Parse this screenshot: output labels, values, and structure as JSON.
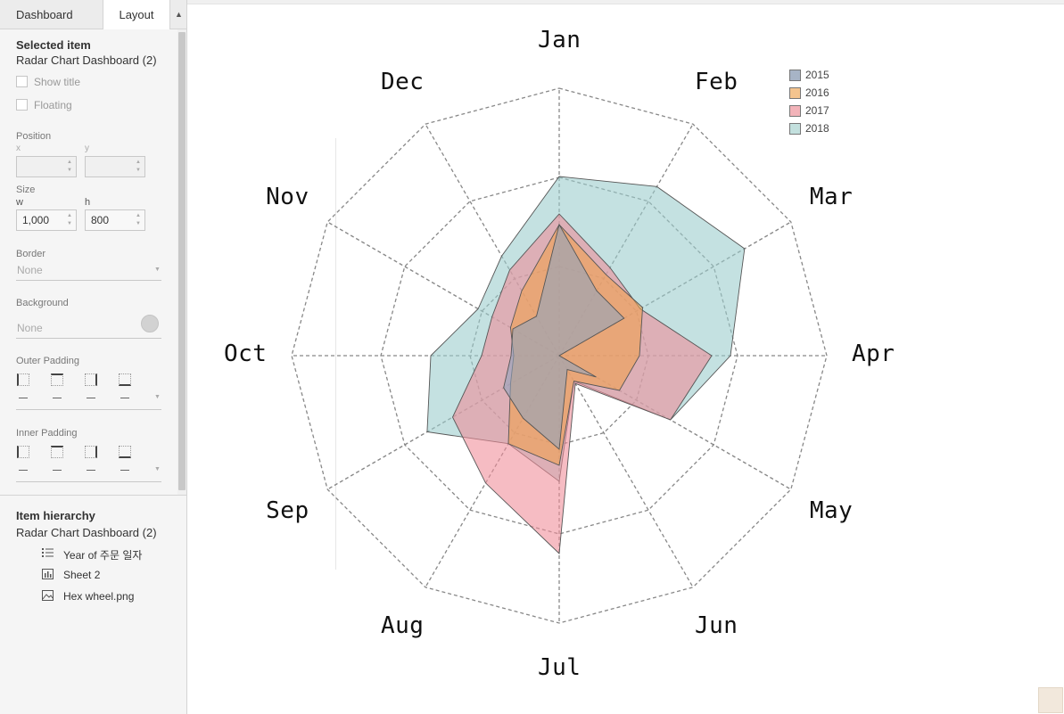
{
  "panel": {
    "tabs": [
      "Dashboard",
      "Layout"
    ],
    "selected_item_header": "Selected item",
    "selected_item_name": "Radar Chart Dashboard (2)",
    "show_title_label": "Show title",
    "floating_label": "Floating",
    "position_label": "Position",
    "x_label": "x",
    "y_label": "y",
    "x_value": "",
    "y_value": "",
    "size_label": "Size",
    "w_label": "w",
    "h_label": "h",
    "w_value": "1,000",
    "h_value": "800",
    "border_label": "Border",
    "border_value": "None",
    "background_label": "Background",
    "background_value": "None",
    "outer_padding_label": "Outer Padding",
    "inner_padding_label": "Inner Padding",
    "padding_value": "–",
    "item_hierarchy_header": "Item hierarchy",
    "hierarchy_root": "Radar Chart Dashboard (2)",
    "hierarchy_items": [
      {
        "label": "Year of 주문 일자",
        "icon": "legend-icon"
      },
      {
        "label": "Sheet 2",
        "icon": "worksheet-icon"
      },
      {
        "label": "Hex wheel.png",
        "icon": "image-icon"
      }
    ]
  },
  "chart_data": {
    "type": "radar",
    "categories": [
      "Jan",
      "Feb",
      "Mar",
      "Apr",
      "May",
      "Jun",
      "Jul",
      "Aug",
      "Sep",
      "Oct",
      "Nov",
      "Dec"
    ],
    "range": [
      0,
      1
    ],
    "rings": 3,
    "series": [
      {
        "name": "2015",
        "color": "#8fa3bf",
        "values": [
          0.49,
          0.28,
          0.28,
          0,
          0.16,
          0.06,
          0.35,
          0.27,
          0.24,
          0.18,
          0.2,
          0.17
        ]
      },
      {
        "name": "2016",
        "color": "#f0a04b",
        "values": [
          0.49,
          0.35,
          0.36,
          0.3,
          0.26,
          0.11,
          0.41,
          0.38,
          0.21,
          0.17,
          0.21,
          0.28
        ]
      },
      {
        "name": "2017",
        "color": "#f08c98",
        "values": [
          0.53,
          0.38,
          0.35,
          0.57,
          0.48,
          0.12,
          0.74,
          0.55,
          0.46,
          0.29,
          0.29,
          0.37
        ]
      },
      {
        "name": "2018",
        "color": "#99cccc",
        "values": [
          0.67,
          0.73,
          0.8,
          0.64,
          0.48,
          0.11,
          0.47,
          0.38,
          0.57,
          0.48,
          0.35,
          0.43
        ]
      }
    ],
    "legend": [
      "2015",
      "2016",
      "2017",
      "2018"
    ],
    "legend_position": "top-right"
  }
}
